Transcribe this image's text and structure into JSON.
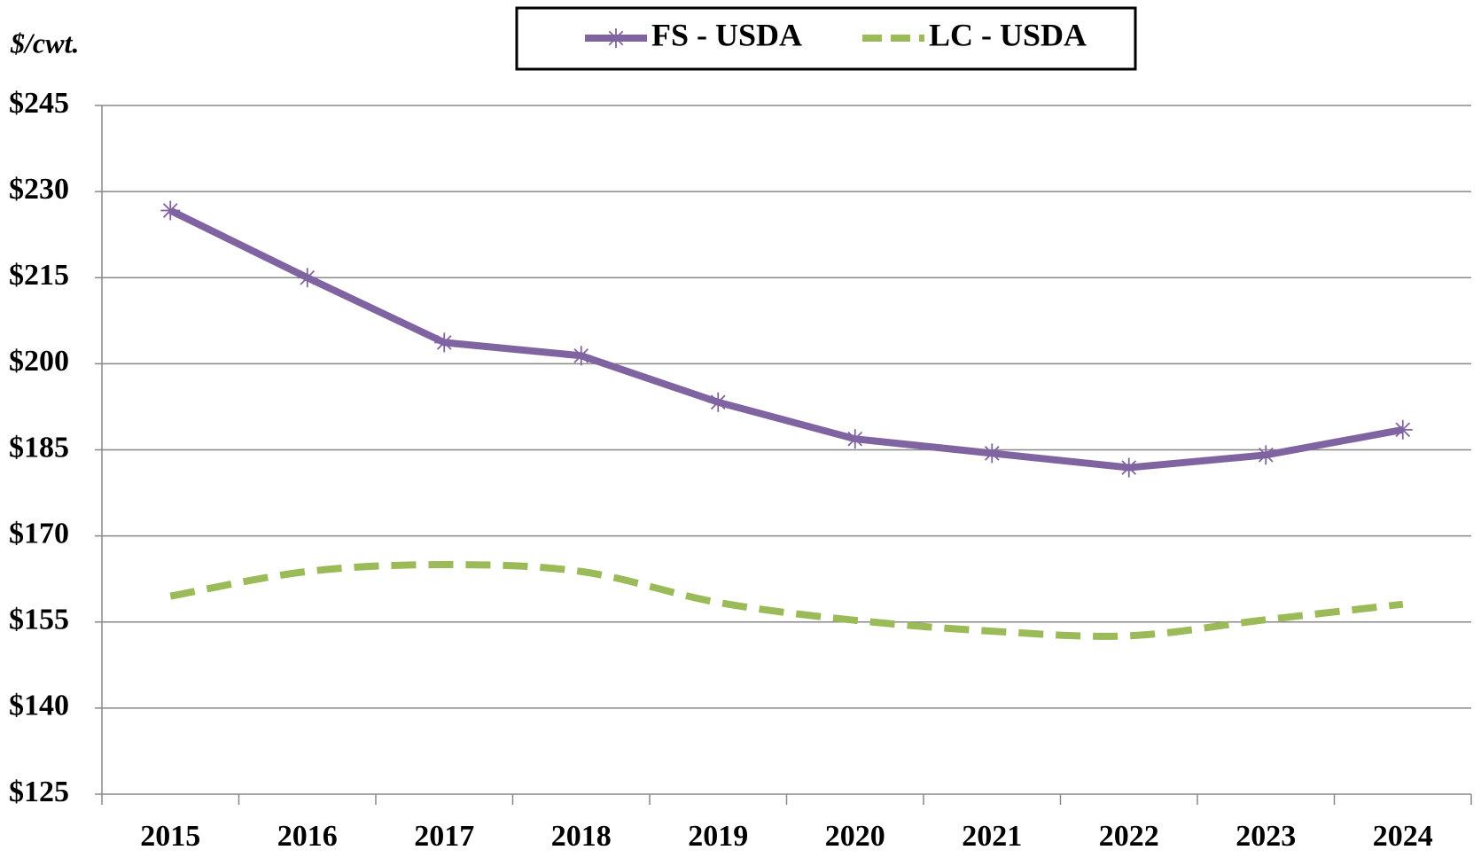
{
  "chart_data": {
    "type": "line",
    "y_axis_label": "$/cwt.",
    "categories": [
      "2015",
      "2016",
      "2017",
      "2018",
      "2019",
      "2020",
      "2021",
      "2022",
      "2023",
      "2024"
    ],
    "series": [
      {
        "name": "FS - USDA",
        "color": "#8064a2",
        "style": "solid",
        "marker": "star",
        "values": [
          226.7,
          215.0,
          203.7,
          201.4,
          193.3,
          186.9,
          184.4,
          181.9,
          184.1,
          188.5
        ]
      },
      {
        "name": "LC - USDA",
        "color": "#9bbb59",
        "style": "dashed",
        "smooth": true,
        "values": [
          159.5,
          163.8,
          165.0,
          163.8,
          158.4,
          155.3,
          153.4,
          152.6,
          155.4,
          158.1
        ]
      }
    ],
    "ylim": [
      125,
      245
    ],
    "yticks": [
      {
        "value": 125,
        "label": "$125"
      },
      {
        "value": 140,
        "label": "$140"
      },
      {
        "value": 155,
        "label": "$155"
      },
      {
        "value": 170,
        "label": "$170"
      },
      {
        "value": 185,
        "label": "$185"
      },
      {
        "value": 200,
        "label": "$200"
      },
      {
        "value": 215,
        "label": "$215"
      },
      {
        "value": 230,
        "label": "$230"
      },
      {
        "value": 245,
        "label": "$245"
      }
    ],
    "grid": true,
    "legend": "top"
  }
}
